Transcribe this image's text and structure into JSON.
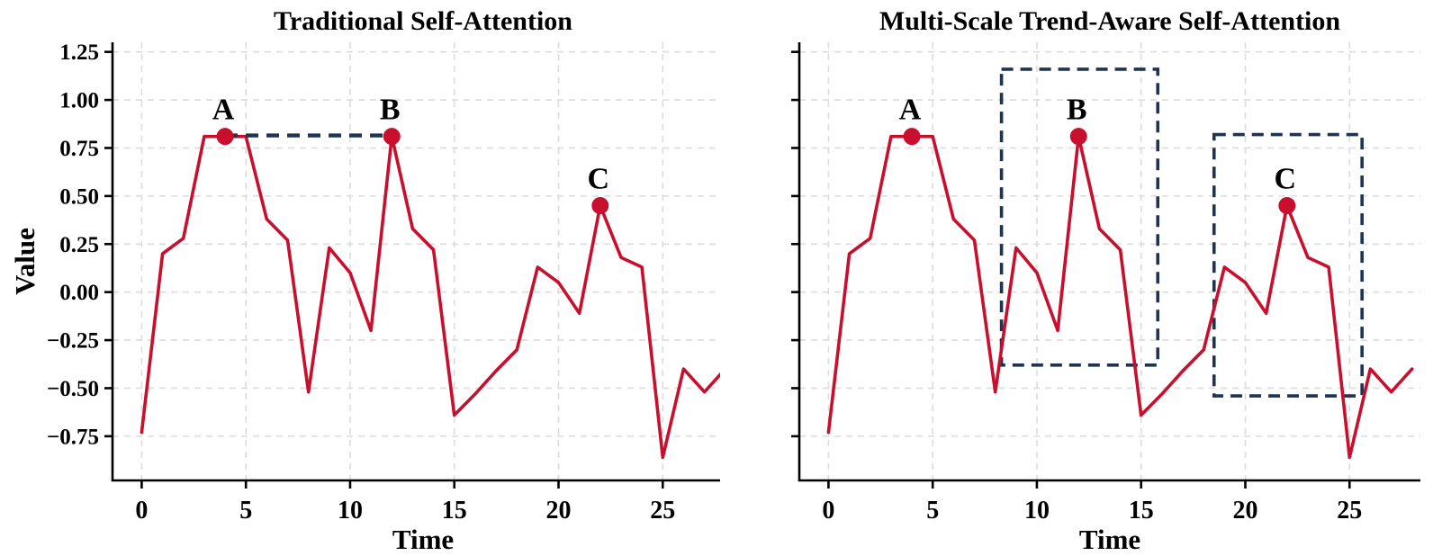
{
  "figure": {
    "background": "#ffffff",
    "line_color": "#c8102e",
    "marker_color": "#c8102e",
    "dashed_color": "#1e3450",
    "grid_color": "#dcdcdc",
    "axis_color": "#000000",
    "text_color": "#000000"
  },
  "chart_data": [
    {
      "type": "line",
      "title": "Traditional Self-Attention",
      "xlabel": "Time",
      "ylabel": "Value",
      "x": [
        0,
        1,
        2,
        3,
        4,
        5,
        6,
        7,
        8,
        9,
        10,
        11,
        12,
        13,
        14,
        15,
        16,
        17,
        18,
        19,
        20,
        21,
        22,
        23,
        24,
        25,
        26,
        27,
        28
      ],
      "y": [
        -0.73,
        0.2,
        0.28,
        0.81,
        0.81,
        0.81,
        0.38,
        0.27,
        -0.52,
        0.23,
        0.1,
        -0.2,
        0.81,
        0.33,
        0.22,
        -0.64,
        -0.53,
        -0.41,
        -0.3,
        0.13,
        0.05,
        -0.11,
        0.45,
        0.18,
        0.13,
        -0.86,
        -0.4,
        -0.52,
        -0.4
      ],
      "xticks": [
        0,
        5,
        10,
        15,
        20,
        25
      ],
      "yticks": [
        -0.75,
        -0.5,
        -0.25,
        0.0,
        0.25,
        0.5,
        0.75,
        1.0,
        1.25
      ],
      "xlim": [
        -1.4,
        28.4
      ],
      "ylim": [
        -0.98,
        1.3
      ],
      "grid": true,
      "show_y_tick_labels": true,
      "annotations": [
        {
          "label": "A",
          "x": 4,
          "y": 0.81
        },
        {
          "label": "B",
          "x": 12,
          "y": 0.81
        },
        {
          "label": "C",
          "x": 22,
          "y": 0.45
        }
      ],
      "connector": {
        "x1": 4,
        "x2": 12,
        "y": 0.815
      },
      "rects": []
    },
    {
      "type": "line",
      "title": "Multi-Scale Trend-Aware Self-Attention",
      "xlabel": "Time",
      "ylabel": "",
      "x": [
        0,
        1,
        2,
        3,
        4,
        5,
        6,
        7,
        8,
        9,
        10,
        11,
        12,
        13,
        14,
        15,
        16,
        17,
        18,
        19,
        20,
        21,
        22,
        23,
        24,
        25,
        26,
        27,
        28
      ],
      "y": [
        -0.73,
        0.2,
        0.28,
        0.81,
        0.81,
        0.81,
        0.38,
        0.27,
        -0.52,
        0.23,
        0.1,
        -0.2,
        0.81,
        0.33,
        0.22,
        -0.64,
        -0.53,
        -0.41,
        -0.3,
        0.13,
        0.05,
        -0.11,
        0.45,
        0.18,
        0.13,
        -0.86,
        -0.4,
        -0.52,
        -0.4
      ],
      "xticks": [
        0,
        5,
        10,
        15,
        20,
        25
      ],
      "yticks": [
        -0.75,
        -0.5,
        -0.25,
        0.0,
        0.25,
        0.5,
        0.75,
        1.0,
        1.25
      ],
      "xlim": [
        -1.4,
        28.4
      ],
      "ylim": [
        -0.98,
        1.3
      ],
      "grid": true,
      "show_y_tick_labels": false,
      "annotations": [
        {
          "label": "A",
          "x": 4,
          "y": 0.81
        },
        {
          "label": "B",
          "x": 12,
          "y": 0.81
        },
        {
          "label": "C",
          "x": 22,
          "y": 0.45
        }
      ],
      "connector": null,
      "rects": [
        {
          "x1": 8.3,
          "x2": 15.8,
          "y1": -0.38,
          "y2": 1.16
        },
        {
          "x1": 18.5,
          "x2": 25.6,
          "y1": -0.54,
          "y2": 0.82
        }
      ]
    }
  ]
}
